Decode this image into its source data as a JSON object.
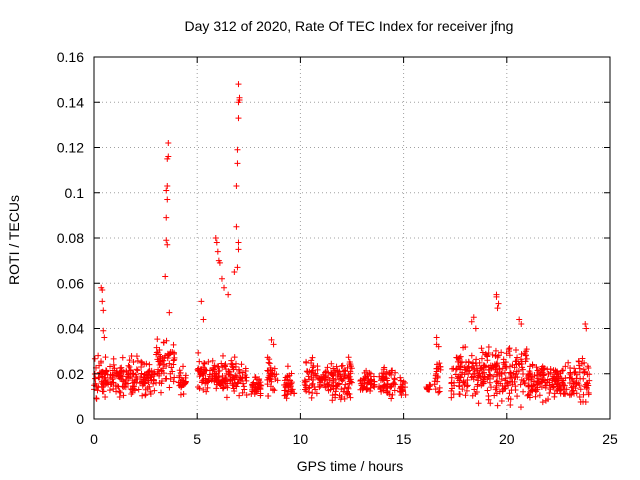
{
  "chart_data": {
    "type": "scatter",
    "title": "Day 312 of 2020, Rate Of TEC Index for receiver jfng",
    "xlabel": "GPS time / hours",
    "ylabel": "ROTI / TECUs",
    "xlim": [
      0,
      25
    ],
    "ylim": [
      0,
      0.16
    ],
    "grid": true,
    "legend": "none",
    "marker": "+",
    "colors": {
      "series": "#ff0000",
      "grid": "#a0a0a0",
      "axis": "#000000"
    },
    "x_ticks": [
      0,
      5,
      10,
      15,
      20,
      25
    ],
    "x_tick_labels": [
      "0",
      "5",
      "10",
      "15",
      "20",
      "25"
    ],
    "y_ticks": [
      0,
      0.02,
      0.04,
      0.06,
      0.08,
      0.1,
      0.12,
      0.14,
      0.16
    ],
    "y_tick_labels": [
      "0",
      "0.02",
      "0.04",
      "0.06",
      "0.08",
      "0.1",
      "0.12",
      "0.14",
      "0.16"
    ],
    "clusters": [
      [
        0.0,
        1.5,
        0.006,
        0.03
      ],
      [
        1.5,
        3.0,
        0.007,
        0.03
      ],
      [
        3.0,
        3.9,
        0.008,
        0.04
      ],
      [
        4.1,
        4.5,
        0.008,
        0.025
      ],
      [
        5.0,
        7.4,
        0.008,
        0.03
      ],
      [
        7.6,
        8.1,
        0.008,
        0.02
      ],
      [
        8.4,
        8.9,
        0.007,
        0.03
      ],
      [
        9.2,
        9.7,
        0.006,
        0.025
      ],
      [
        10.2,
        12.5,
        0.005,
        0.03
      ],
      [
        12.9,
        13.6,
        0.008,
        0.025
      ],
      [
        13.8,
        14.6,
        0.005,
        0.028
      ],
      [
        14.8,
        15.1,
        0.008,
        0.02
      ],
      [
        16.1,
        16.3,
        0.011,
        0.016
      ],
      [
        16.5,
        16.8,
        0.006,
        0.032
      ],
      [
        17.3,
        19.0,
        0.004,
        0.035
      ],
      [
        19.0,
        21.0,
        0.003,
        0.038
      ],
      [
        21.0,
        24.0,
        0.004,
        0.03
      ]
    ],
    "outliers": [
      [
        0.2,
        0.028
      ],
      [
        0.35,
        0.058
      ],
      [
        0.4,
        0.057
      ],
      [
        0.4,
        0.052
      ],
      [
        0.45,
        0.048
      ],
      [
        0.45,
        0.039
      ],
      [
        0.5,
        0.036
      ],
      [
        3.45,
        0.063
      ],
      [
        3.5,
        0.079
      ],
      [
        3.5,
        0.089
      ],
      [
        3.5,
        0.101
      ],
      [
        3.55,
        0.103
      ],
      [
        3.55,
        0.097
      ],
      [
        3.55,
        0.115
      ],
      [
        3.6,
        0.116
      ],
      [
        3.6,
        0.122
      ],
      [
        3.55,
        0.077
      ],
      [
        3.65,
        0.047
      ],
      [
        5.2,
        0.052
      ],
      [
        5.3,
        0.044
      ],
      [
        5.9,
        0.08
      ],
      [
        5.95,
        0.078
      ],
      [
        6.0,
        0.074
      ],
      [
        6.05,
        0.07
      ],
      [
        6.1,
        0.069
      ],
      [
        6.2,
        0.062
      ],
      [
        6.3,
        0.058
      ],
      [
        6.5,
        0.055
      ],
      [
        6.8,
        0.065
      ],
      [
        6.9,
        0.085
      ],
      [
        6.9,
        0.103
      ],
      [
        6.95,
        0.113
      ],
      [
        6.95,
        0.119
      ],
      [
        7.0,
        0.133
      ],
      [
        7.0,
        0.14
      ],
      [
        7.05,
        0.141
      ],
      [
        7.05,
        0.142
      ],
      [
        7.0,
        0.148
      ],
      [
        7.0,
        0.078
      ],
      [
        7.0,
        0.075
      ],
      [
        6.95,
        0.067
      ],
      [
        8.6,
        0.035
      ],
      [
        8.7,
        0.033
      ],
      [
        16.6,
        0.036
      ],
      [
        16.6,
        0.033
      ],
      [
        16.7,
        0.032
      ],
      [
        18.3,
        0.043
      ],
      [
        18.4,
        0.045
      ],
      [
        18.5,
        0.04
      ],
      [
        19.5,
        0.055
      ],
      [
        19.5,
        0.054
      ],
      [
        19.6,
        0.051
      ],
      [
        19.55,
        0.049
      ],
      [
        20.6,
        0.044
      ],
      [
        20.7,
        0.042
      ],
      [
        23.8,
        0.042
      ],
      [
        23.85,
        0.04
      ]
    ]
  }
}
